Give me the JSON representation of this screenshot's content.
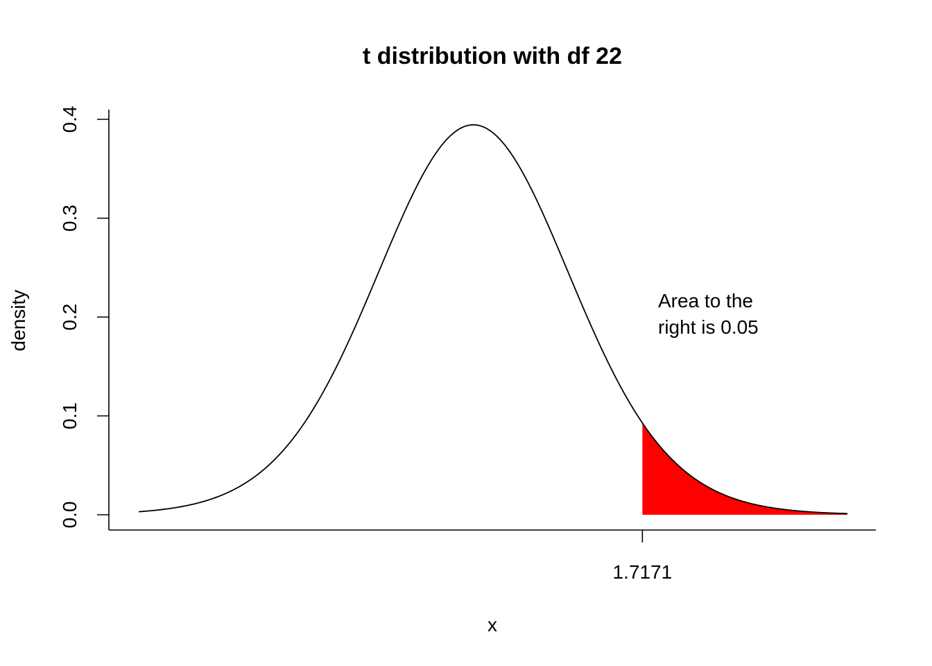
{
  "chart_data": {
    "type": "area",
    "title": "t distribution with df 22",
    "xlabel": "x",
    "ylabel": "density",
    "df": 22,
    "xlim": [
      -3.4,
      3.8
    ],
    "ylim": [
      0,
      0.4
    ],
    "yticks": [
      0.0,
      0.1,
      0.2,
      0.3,
      0.4
    ],
    "ytick_labels": [
      "0.0",
      "0.1",
      "0.2",
      "0.3",
      "0.4"
    ],
    "xticks": [
      1.7171
    ],
    "xtick_labels": [
      "1.7171"
    ],
    "curve_color": "#000000",
    "shade_color": "#ff0000",
    "shaded_region": {
      "from": 1.7171,
      "to": 3.8,
      "area": 0.05
    },
    "annotation": [
      "Area to the",
      "right is 0.05"
    ],
    "grid": false
  }
}
